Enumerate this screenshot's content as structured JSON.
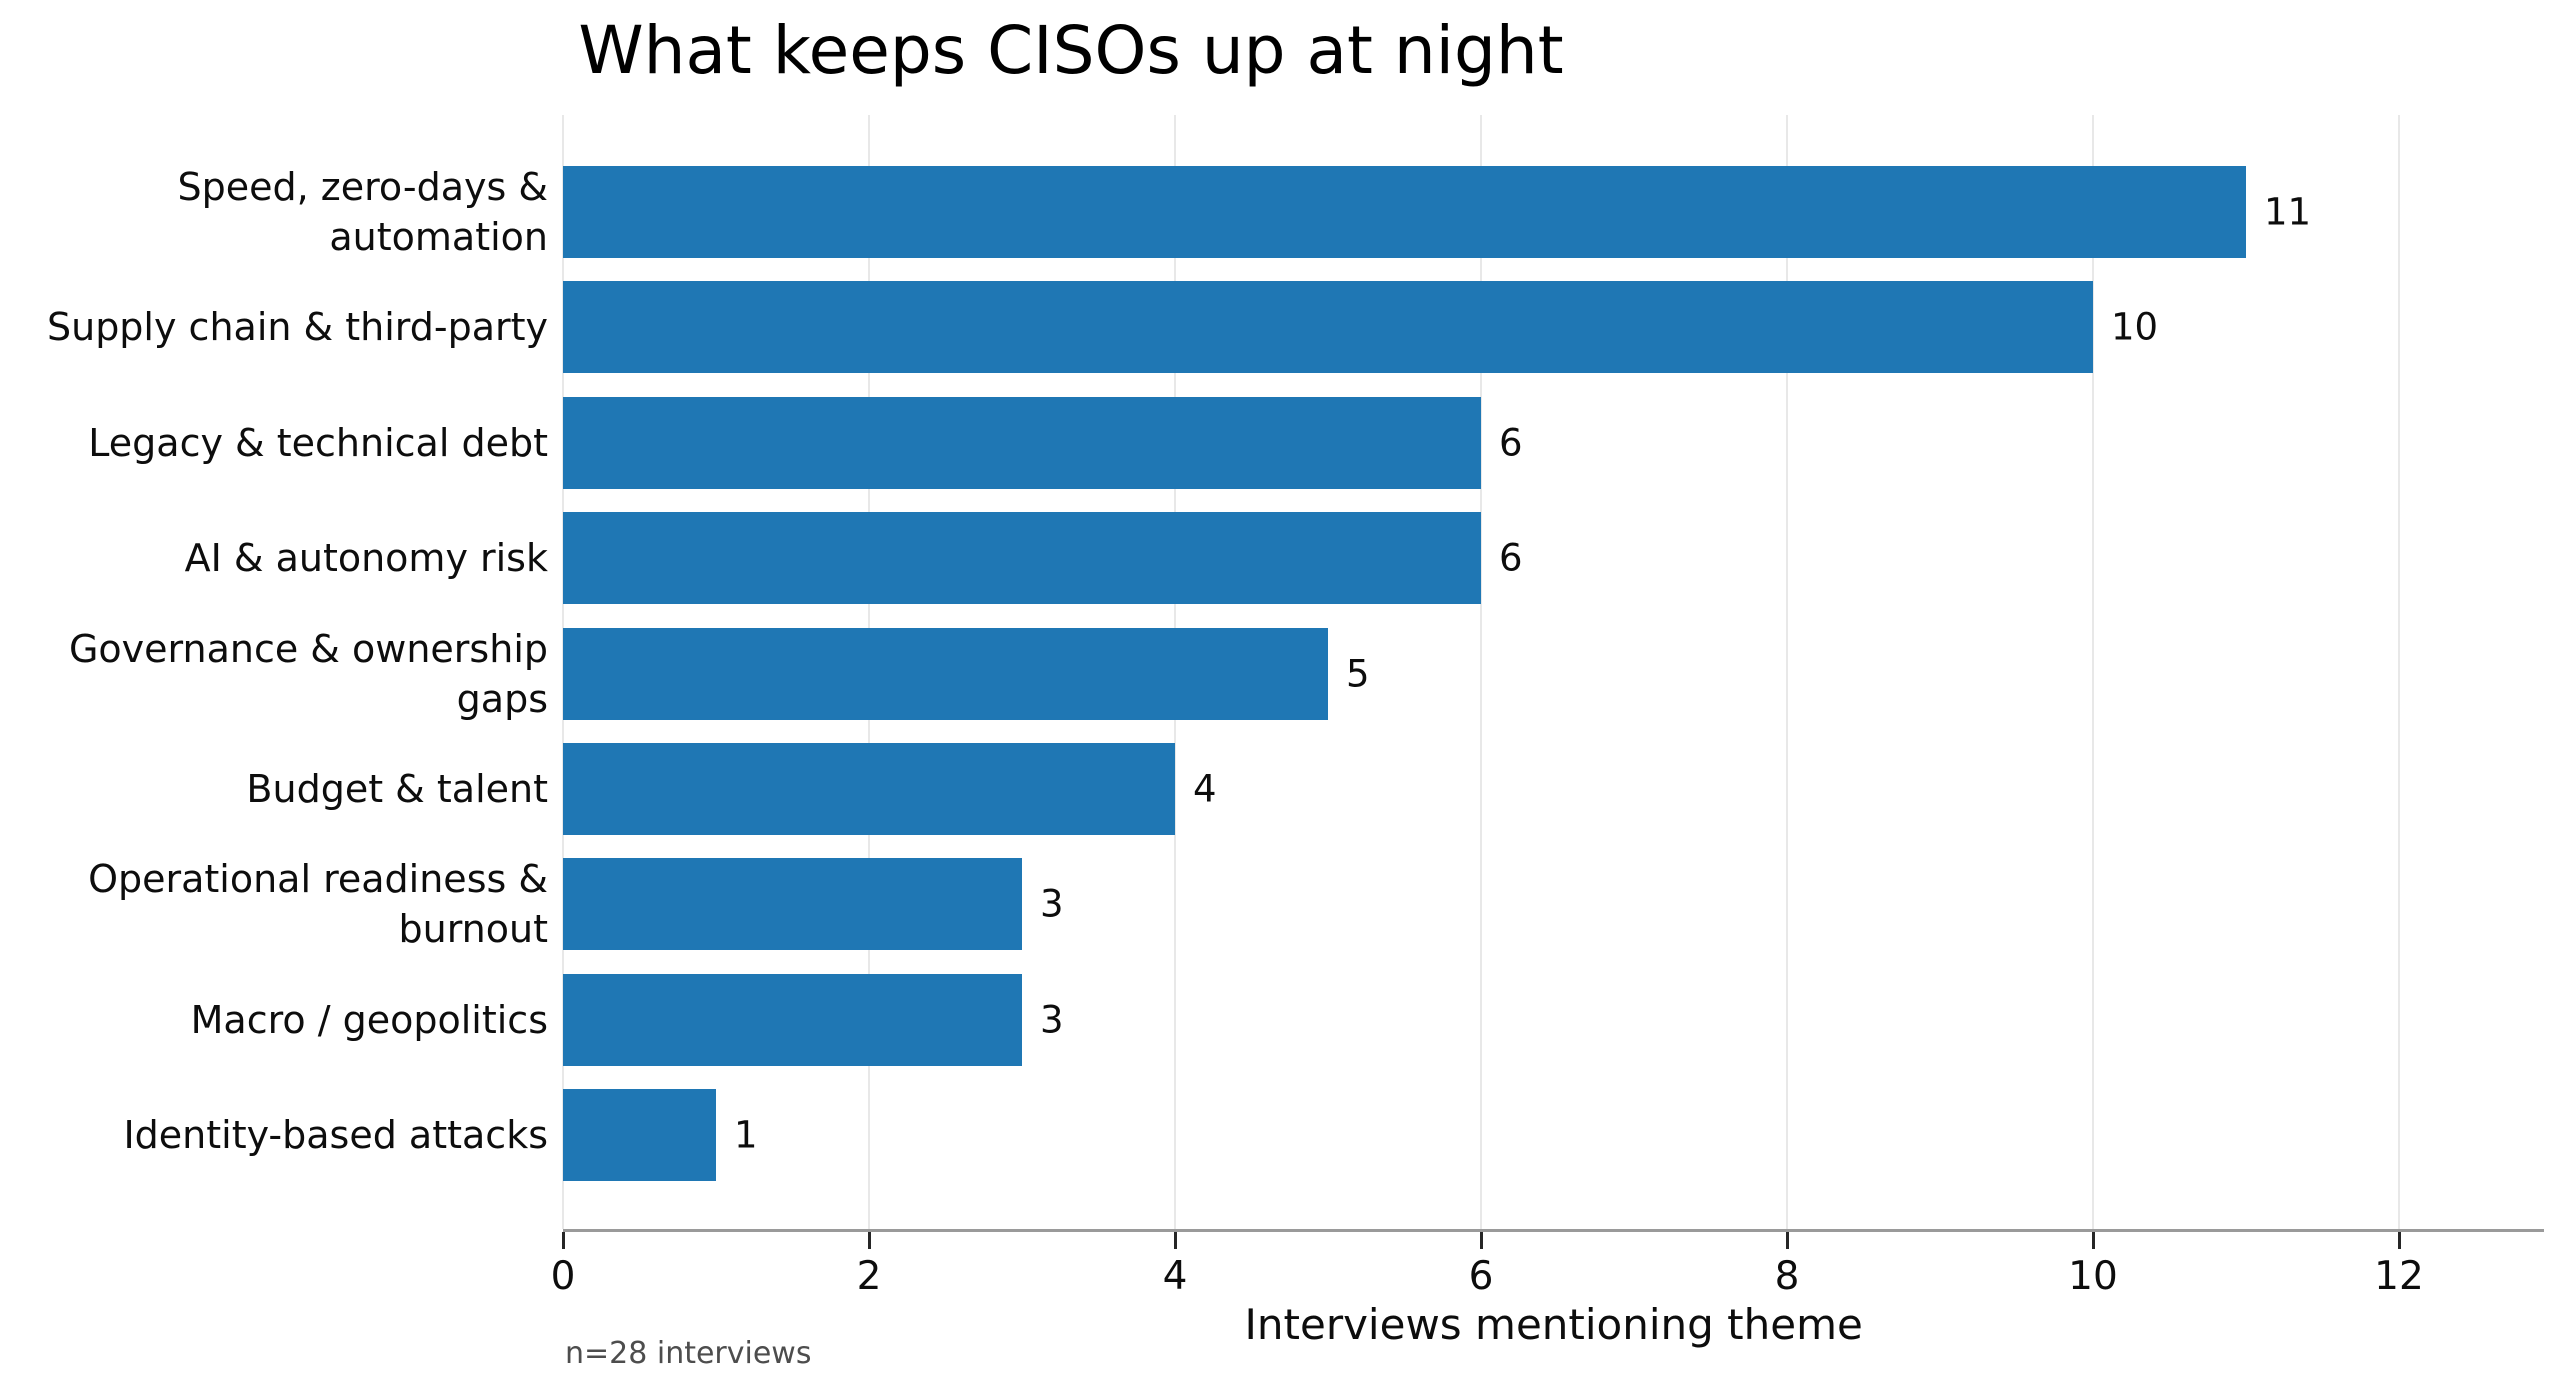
{
  "chart_data": {
    "type": "bar",
    "orientation": "horizontal",
    "title": "What keeps CISOs up at night",
    "xlabel": "Interviews mentioning theme",
    "footnote": "n=28 interviews",
    "categories": [
      "Speed, zero-days &\nautomation",
      "Supply chain & third-party",
      "Legacy & technical debt",
      "AI & autonomy risk",
      "Governance & ownership\ngaps",
      "Budget & talent",
      "Operational readiness &\nburnout",
      "Macro / geopolitics",
      "Identity-based attacks"
    ],
    "values": [
      11,
      10,
      6,
      6,
      5,
      4,
      3,
      3,
      1
    ],
    "data_labels": [
      "11",
      "10",
      "6",
      "6",
      "5",
      "4",
      "3",
      "3",
      "1"
    ],
    "xticks": [
      "0",
      "2",
      "4",
      "6",
      "8",
      "10",
      "12"
    ],
    "xtick_values": [
      0,
      2,
      4,
      6,
      8,
      10,
      12
    ],
    "xlim": [
      0,
      12.95
    ],
    "grid": true,
    "legend": false,
    "bar_color": "#1f77b4",
    "grid_color": "#e8e8e8",
    "axis_color": "#9a9a9a",
    "text_color": "#0d0d0d",
    "footnote_color": "#4d4d4d"
  }
}
